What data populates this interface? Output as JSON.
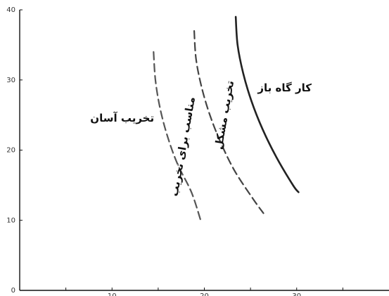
{
  "chart_data": {
    "type": "line",
    "title": "",
    "xlabel": "",
    "ylabel": "",
    "xlim": [
      0,
      40
    ],
    "ylim": [
      0,
      40
    ],
    "x_ticks": [
      10,
      20,
      30
    ],
    "x_tick_labels": [
      "10",
      "20",
      "30"
    ],
    "y_ticks": [
      0,
      10,
      20,
      30,
      40
    ],
    "y_tick_labels": [
      "0",
      "10",
      "20",
      "30",
      "40"
    ],
    "grid": false,
    "series": [
      {
        "style": "dashed",
        "color": "#555555",
        "points": [
          [
            14.5,
            34.0
          ],
          [
            14.7,
            30.0
          ],
          [
            15.2,
            26.0
          ],
          [
            16.0,
            22.0
          ],
          [
            17.1,
            18.0
          ],
          [
            18.6,
            14.0
          ],
          [
            19.6,
            10.0
          ]
        ]
      },
      {
        "style": "dashed",
        "color": "#444444",
        "points": [
          [
            18.9,
            37.0
          ],
          [
            19.1,
            33.0
          ],
          [
            19.7,
            29.0
          ],
          [
            20.6,
            25.0
          ],
          [
            21.8,
            21.0
          ],
          [
            23.3,
            17.0
          ],
          [
            25.3,
            13.0
          ],
          [
            26.4,
            11.0
          ]
        ]
      },
      {
        "style": "solid",
        "color": "#222222",
        "points": [
          [
            23.4,
            39.0
          ],
          [
            23.6,
            35.0
          ],
          [
            24.2,
            31.0
          ],
          [
            25.1,
            27.0
          ],
          [
            26.3,
            23.0
          ],
          [
            27.8,
            19.0
          ],
          [
            29.6,
            15.0
          ],
          [
            30.2,
            14.0
          ]
        ]
      }
    ],
    "region_labels": [
      {
        "text": "تخریب آسان",
        "x": 11.1,
        "y": 24.5,
        "rotate": 0
      },
      {
        "text": "مناسب برای تخریب",
        "x": 17.7,
        "y": 20.5,
        "rotate": -80
      },
      {
        "text": "تخریب مشکل",
        "x": 22.2,
        "y": 25.0,
        "rotate": -80
      },
      {
        "text": "کار گاه باز",
        "x": 28.7,
        "y": 28.8,
        "rotate": 0
      }
    ]
  }
}
